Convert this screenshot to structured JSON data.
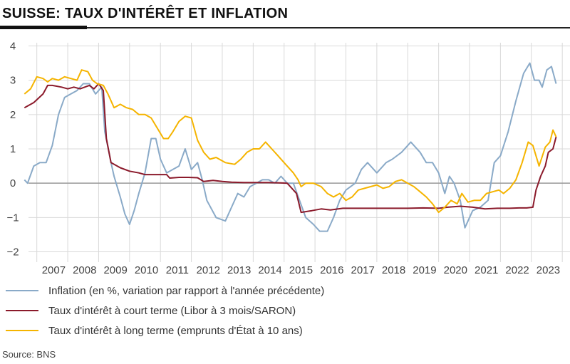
{
  "title": "SUISSE: TAUX D'INTÉRÊT ET INFLATION",
  "source": "Source: BNS",
  "colors": {
    "inflation": "#8AAAC8",
    "short_rate": "#8B1A2B",
    "long_rate": "#F5B400",
    "grid": "#d9d9d9",
    "zero": "#999999"
  },
  "legend": [
    {
      "label": "Inflation (en %, variation par rapport à l'année précédente)"
    },
    {
      "label": "Taux d'intérêt à court terme (Libor à 3 mois/SARON)"
    },
    {
      "label": "Taux d'intérêt à long terme (emprunts d'État à 10 ans)"
    }
  ],
  "chart_data": {
    "type": "line",
    "xlim": [
      2006,
      2023.75
    ],
    "ylim": [
      -2.3,
      4.3
    ],
    "x_ticks": [
      2007,
      2008,
      2009,
      2010,
      2011,
      2012,
      2013,
      2014,
      2015,
      2016,
      2017,
      2018,
      2019,
      2020,
      2021,
      2022,
      2023
    ],
    "y_ticks": [
      -2,
      -1,
      0,
      1,
      2,
      3,
      4
    ],
    "series": [
      {
        "name": "Inflation (en %, variation par rapport à l'année précédente)",
        "points": [
          [
            2006.1,
            0.1
          ],
          [
            2006.2,
            0.0
          ],
          [
            2006.4,
            0.5
          ],
          [
            2006.6,
            0.6
          ],
          [
            2006.8,
            0.6
          ],
          [
            2007.0,
            1.1
          ],
          [
            2007.2,
            2.0
          ],
          [
            2007.4,
            2.5
          ],
          [
            2007.6,
            2.6
          ],
          [
            2007.8,
            2.7
          ],
          [
            2008.0,
            2.9
          ],
          [
            2008.2,
            2.9
          ],
          [
            2008.4,
            2.6
          ],
          [
            2008.6,
            2.8
          ],
          [
            2008.7,
            1.5
          ],
          [
            2008.9,
            0.6
          ],
          [
            2009.0,
            0.2
          ],
          [
            2009.2,
            -0.4
          ],
          [
            2009.35,
            -0.9
          ],
          [
            2009.5,
            -1.2
          ],
          [
            2009.65,
            -0.8
          ],
          [
            2009.8,
            -0.3
          ],
          [
            2010.0,
            0.3
          ],
          [
            2010.2,
            1.3
          ],
          [
            2010.35,
            1.3
          ],
          [
            2010.5,
            0.7
          ],
          [
            2010.7,
            0.3
          ],
          [
            2010.9,
            0.4
          ],
          [
            2011.1,
            0.5
          ],
          [
            2011.3,
            1.0
          ],
          [
            2011.5,
            0.4
          ],
          [
            2011.7,
            0.6
          ],
          [
            2011.85,
            0.1
          ],
          [
            2012.0,
            -0.5
          ],
          [
            2012.3,
            -1.0
          ],
          [
            2012.6,
            -1.1
          ],
          [
            2012.8,
            -0.7
          ],
          [
            2013.0,
            -0.3
          ],
          [
            2013.2,
            -0.4
          ],
          [
            2013.4,
            -0.1
          ],
          [
            2013.6,
            0.0
          ],
          [
            2013.8,
            0.1
          ],
          [
            2014.0,
            0.1
          ],
          [
            2014.2,
            0.0
          ],
          [
            2014.4,
            0.2
          ],
          [
            2014.6,
            0.0
          ],
          [
            2014.8,
            0.0
          ],
          [
            2015.0,
            -0.5
          ],
          [
            2015.2,
            -1.0
          ],
          [
            2015.45,
            -1.2
          ],
          [
            2015.65,
            -1.4
          ],
          [
            2015.9,
            -1.4
          ],
          [
            2016.1,
            -1.0
          ],
          [
            2016.3,
            -0.5
          ],
          [
            2016.5,
            -0.2
          ],
          [
            2016.8,
            0.0
          ],
          [
            2017.0,
            0.4
          ],
          [
            2017.2,
            0.6
          ],
          [
            2017.5,
            0.3
          ],
          [
            2017.8,
            0.6
          ],
          [
            2018.0,
            0.7
          ],
          [
            2018.3,
            0.9
          ],
          [
            2018.6,
            1.2
          ],
          [
            2018.9,
            0.9
          ],
          [
            2019.1,
            0.6
          ],
          [
            2019.3,
            0.6
          ],
          [
            2019.5,
            0.3
          ],
          [
            2019.7,
            -0.3
          ],
          [
            2019.85,
            0.2
          ],
          [
            2020.0,
            0.0
          ],
          [
            2020.2,
            -0.5
          ],
          [
            2020.35,
            -1.3
          ],
          [
            2020.6,
            -0.8
          ],
          [
            2020.85,
            -0.7
          ],
          [
            2021.1,
            -0.5
          ],
          [
            2021.3,
            0.6
          ],
          [
            2021.5,
            0.8
          ],
          [
            2021.75,
            1.5
          ],
          [
            2022.0,
            2.4
          ],
          [
            2022.25,
            3.2
          ],
          [
            2022.45,
            3.5
          ],
          [
            2022.6,
            3.0
          ],
          [
            2022.75,
            3.0
          ],
          [
            2022.85,
            2.8
          ],
          [
            2023.0,
            3.3
          ],
          [
            2023.15,
            3.4
          ],
          [
            2023.3,
            2.9
          ]
        ]
      },
      {
        "name": "Taux d'intérêt à court terme (Libor à 3 mois/SARON)",
        "points": [
          [
            2006.1,
            2.2
          ],
          [
            2006.4,
            2.35
          ],
          [
            2006.7,
            2.6
          ],
          [
            2006.85,
            2.85
          ],
          [
            2007.0,
            2.85
          ],
          [
            2007.3,
            2.8
          ],
          [
            2007.5,
            2.75
          ],
          [
            2007.7,
            2.8
          ],
          [
            2007.9,
            2.75
          ],
          [
            2008.2,
            2.85
          ],
          [
            2008.35,
            2.75
          ],
          [
            2008.5,
            2.9
          ],
          [
            2008.65,
            2.7
          ],
          [
            2008.75,
            1.3
          ],
          [
            2008.9,
            0.6
          ],
          [
            2009.2,
            0.45
          ],
          [
            2009.5,
            0.35
          ],
          [
            2009.8,
            0.3
          ],
          [
            2010.0,
            0.25
          ],
          [
            2010.3,
            0.25
          ],
          [
            2010.7,
            0.25
          ],
          [
            2010.8,
            0.15
          ],
          [
            2011.1,
            0.17
          ],
          [
            2011.4,
            0.17
          ],
          [
            2011.7,
            0.16
          ],
          [
            2011.9,
            0.05
          ],
          [
            2012.2,
            0.08
          ],
          [
            2012.5,
            0.05
          ],
          [
            2012.8,
            0.03
          ],
          [
            2013.2,
            0.02
          ],
          [
            2013.6,
            0.02
          ],
          [
            2014.0,
            0.02
          ],
          [
            2014.4,
            0.01
          ],
          [
            2014.6,
            0.0
          ],
          [
            2014.9,
            -0.3
          ],
          [
            2015.05,
            -0.85
          ],
          [
            2015.4,
            -0.8
          ],
          [
            2015.7,
            -0.75
          ],
          [
            2016.0,
            -0.78
          ],
          [
            2016.4,
            -0.73
          ],
          [
            2016.8,
            -0.73
          ],
          [
            2017.2,
            -0.73
          ],
          [
            2017.6,
            -0.73
          ],
          [
            2018.0,
            -0.73
          ],
          [
            2018.5,
            -0.73
          ],
          [
            2019.0,
            -0.72
          ],
          [
            2019.5,
            -0.73
          ],
          [
            2019.8,
            -0.7
          ],
          [
            2020.2,
            -0.67
          ],
          [
            2020.6,
            -0.7
          ],
          [
            2021.0,
            -0.75
          ],
          [
            2021.4,
            -0.73
          ],
          [
            2021.8,
            -0.73
          ],
          [
            2022.1,
            -0.72
          ],
          [
            2022.35,
            -0.72
          ],
          [
            2022.55,
            -0.7
          ],
          [
            2022.65,
            -0.2
          ],
          [
            2022.8,
            0.2
          ],
          [
            2022.95,
            0.5
          ],
          [
            2023.05,
            0.9
          ],
          [
            2023.2,
            1.0
          ],
          [
            2023.3,
            1.35
          ]
        ]
      },
      {
        "name": "Taux d'intérêt à long terme (emprunts d'État à 10 ans)",
        "points": [
          [
            2006.1,
            2.6
          ],
          [
            2006.3,
            2.75
          ],
          [
            2006.5,
            3.1
          ],
          [
            2006.7,
            3.05
          ],
          [
            2006.85,
            2.95
          ],
          [
            2007.0,
            3.05
          ],
          [
            2007.2,
            3.0
          ],
          [
            2007.4,
            3.1
          ],
          [
            2007.6,
            3.05
          ],
          [
            2007.8,
            3.0
          ],
          [
            2007.95,
            3.3
          ],
          [
            2008.15,
            3.25
          ],
          [
            2008.3,
            3.0
          ],
          [
            2008.45,
            2.9
          ],
          [
            2008.65,
            2.85
          ],
          [
            2008.8,
            2.6
          ],
          [
            2009.0,
            2.2
          ],
          [
            2009.2,
            2.3
          ],
          [
            2009.4,
            2.2
          ],
          [
            2009.6,
            2.15
          ],
          [
            2009.8,
            2.0
          ],
          [
            2010.0,
            2.0
          ],
          [
            2010.2,
            1.9
          ],
          [
            2010.4,
            1.6
          ],
          [
            2010.6,
            1.3
          ],
          [
            2010.75,
            1.3
          ],
          [
            2010.9,
            1.5
          ],
          [
            2011.1,
            1.8
          ],
          [
            2011.3,
            1.95
          ],
          [
            2011.5,
            1.9
          ],
          [
            2011.7,
            1.25
          ],
          [
            2011.9,
            0.9
          ],
          [
            2012.1,
            0.7
          ],
          [
            2012.3,
            0.75
          ],
          [
            2012.6,
            0.6
          ],
          [
            2012.9,
            0.55
          ],
          [
            2013.1,
            0.7
          ],
          [
            2013.3,
            0.9
          ],
          [
            2013.5,
            1.0
          ],
          [
            2013.7,
            1.0
          ],
          [
            2013.9,
            1.2
          ],
          [
            2014.1,
            1.0
          ],
          [
            2014.3,
            0.8
          ],
          [
            2014.5,
            0.6
          ],
          [
            2014.8,
            0.3
          ],
          [
            2014.95,
            0.1
          ],
          [
            2015.05,
            -0.1
          ],
          [
            2015.2,
            0.0
          ],
          [
            2015.45,
            0.0
          ],
          [
            2015.7,
            -0.1
          ],
          [
            2015.9,
            -0.3
          ],
          [
            2016.1,
            -0.4
          ],
          [
            2016.3,
            -0.3
          ],
          [
            2016.5,
            -0.5
          ],
          [
            2016.7,
            -0.4
          ],
          [
            2016.9,
            -0.2
          ],
          [
            2017.1,
            -0.15
          ],
          [
            2017.3,
            -0.1
          ],
          [
            2017.5,
            -0.05
          ],
          [
            2017.7,
            -0.15
          ],
          [
            2017.9,
            -0.1
          ],
          [
            2018.1,
            0.05
          ],
          [
            2018.3,
            0.1
          ],
          [
            2018.5,
            0.0
          ],
          [
            2018.7,
            -0.1
          ],
          [
            2018.9,
            -0.25
          ],
          [
            2019.1,
            -0.4
          ],
          [
            2019.3,
            -0.6
          ],
          [
            2019.5,
            -0.85
          ],
          [
            2019.7,
            -0.7
          ],
          [
            2019.9,
            -0.5
          ],
          [
            2020.1,
            -0.6
          ],
          [
            2020.25,
            -0.3
          ],
          [
            2020.45,
            -0.55
          ],
          [
            2020.65,
            -0.5
          ],
          [
            2020.85,
            -0.5
          ],
          [
            2021.05,
            -0.3
          ],
          [
            2021.25,
            -0.25
          ],
          [
            2021.45,
            -0.2
          ],
          [
            2021.6,
            -0.3
          ],
          [
            2021.8,
            -0.15
          ],
          [
            2022.0,
            0.1
          ],
          [
            2022.2,
            0.6
          ],
          [
            2022.4,
            1.2
          ],
          [
            2022.55,
            1.1
          ],
          [
            2022.75,
            0.5
          ],
          [
            2022.95,
            1.05
          ],
          [
            2023.1,
            1.2
          ],
          [
            2023.2,
            1.55
          ],
          [
            2023.3,
            1.35
          ]
        ]
      }
    ]
  }
}
